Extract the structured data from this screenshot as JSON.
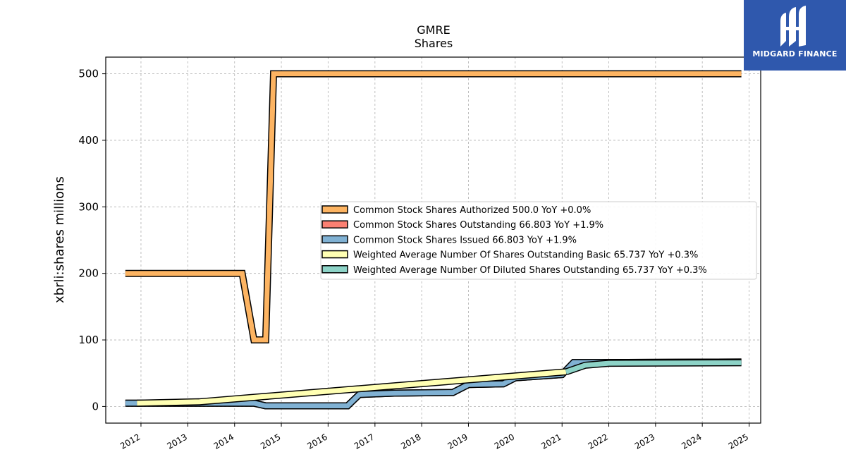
{
  "chart_data": {
    "type": "line",
    "title": "GMRE",
    "subtitle": "Shares",
    "xlabel": "",
    "ylabel": "xbrli:shares millions",
    "xlim": [
      "2011-04-01",
      "2025-04-01"
    ],
    "ylim": [
      -25,
      525
    ],
    "x_ticks": [
      "2012",
      "2013",
      "2014",
      "2015",
      "2016",
      "2017",
      "2018",
      "2019",
      "2020",
      "2021",
      "2022",
      "2023",
      "2024",
      "2025"
    ],
    "y_ticks": [
      0,
      100,
      200,
      300,
      400,
      500
    ],
    "grid": true,
    "legend_position": "center-right",
    "series": [
      {
        "name": "Common Stock Shares Authorized  500.0 YoY +0.0%",
        "color": "#fdb462",
        "x": [
          "2011-09-01",
          "2014-03-01",
          "2014-06-01",
          "2014-09-01",
          "2014-11-01",
          "2024-11-01"
        ],
        "y": [
          200,
          200,
          100,
          100,
          500,
          500
        ]
      },
      {
        "name": "Common Stock Shares Outstanding  66.803 YoY +1.9%",
        "color": "#fb8072",
        "x": [
          "2011-09-01",
          "2014-06-01",
          "2014-09-01",
          "2016-06-01",
          "2016-09-01",
          "2017-06-01",
          "2018-09-01",
          "2019-01-01",
          "2019-10-01",
          "2020-01-01",
          "2021-01-01",
          "2021-04-01",
          "2022-01-01",
          "2024-11-01"
        ],
        "y": [
          5,
          5,
          1,
          1,
          18,
          20,
          21,
          33,
          34,
          43,
          48,
          66,
          66,
          66.8
        ]
      },
      {
        "name": "Common Stock Shares Issued  66.803 YoY +1.9%",
        "color": "#80b1d3",
        "x": [
          "2011-09-01",
          "2014-06-01",
          "2014-09-01",
          "2016-06-01",
          "2016-09-01",
          "2017-06-01",
          "2018-09-01",
          "2019-01-01",
          "2019-10-01",
          "2020-01-01",
          "2021-01-01",
          "2021-04-01",
          "2022-01-01",
          "2024-11-01"
        ],
        "y": [
          5,
          5,
          1,
          1,
          18,
          20,
          21,
          33,
          34,
          43,
          48,
          66,
          66,
          66.8
        ]
      },
      {
        "name": "Weighted Average Number Of Shares Outstanding Basic  65.737 YoY +0.3%",
        "color": "#ffffb3",
        "x": [
          "2011-12-01",
          "2013-04-01",
          "2021-02-01"
        ],
        "y": [
          5,
          7,
          52
        ]
      },
      {
        "name": "Weighted Average Number Of Diluted Shares Outstanding  65.737 YoY +0.3%",
        "color": "#8dd3c7",
        "x": [
          "2021-02-01",
          "2021-07-01",
          "2022-01-01",
          "2024-11-01"
        ],
        "y": [
          52,
          62,
          65,
          65.7
        ]
      }
    ]
  },
  "logo": {
    "text": "MIDGARD FINANCE"
  }
}
